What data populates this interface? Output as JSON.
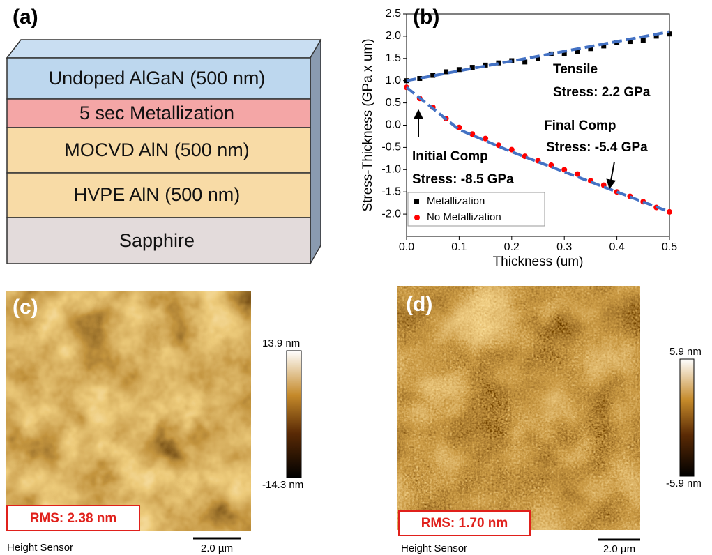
{
  "panel_a": {
    "label": "(a)",
    "layers": [
      "Undoped AlGaN (500 nm)",
      "5 sec Metallization",
      "MOCVD AlN (500 nm)",
      "HVPE AlN (500 nm)",
      "Sapphire"
    ]
  },
  "chart_data": {
    "type": "scatter",
    "panel_label": "(b)",
    "xlabel": "Thickness (um)",
    "ylabel": "Stress-Thickness (GPa x um)",
    "xlim": [
      0,
      0.5
    ],
    "ylim": [
      -2.5,
      2.5
    ],
    "xticks": [
      {
        "value": 0,
        "label": "0.0"
      },
      {
        "value": 0.1,
        "label": "0.1"
      },
      {
        "value": 0.2,
        "label": "0.2"
      },
      {
        "value": 0.3,
        "label": "0.3"
      },
      {
        "value": 0.4,
        "label": "0.4"
      },
      {
        "value": 0.5,
        "label": "0.5"
      }
    ],
    "yticks": [
      {
        "value": -2,
        "label": "-2.0"
      },
      {
        "value": -1.5,
        "label": "-1.5"
      },
      {
        "value": -1,
        "label": "-1.0"
      },
      {
        "value": -0.5,
        "label": "-0.5"
      },
      {
        "value": 0,
        "label": "0.0"
      },
      {
        "value": 0.5,
        "label": "0.5"
      },
      {
        "value": 1,
        "label": "1.0"
      },
      {
        "value": 1.5,
        "label": "1.5"
      },
      {
        "value": 2,
        "label": "2.0"
      },
      {
        "value": 2.5,
        "label": "2.5"
      }
    ],
    "series": [
      {
        "name": "Metallization",
        "color": "#000000",
        "marker": "square",
        "x": [
          0,
          0.025,
          0.05,
          0.075,
          0.1,
          0.125,
          0.15,
          0.175,
          0.2,
          0.225,
          0.25,
          0.275,
          0.3,
          0.325,
          0.35,
          0.375,
          0.4,
          0.425,
          0.45,
          0.475,
          0.5
        ],
        "values": [
          1.0,
          1.05,
          1.12,
          1.2,
          1.25,
          1.3,
          1.35,
          1.4,
          1.45,
          1.42,
          1.5,
          1.6,
          1.6,
          1.65,
          1.72,
          1.78,
          1.85,
          1.88,
          1.9,
          2.0,
          2.05
        ]
      },
      {
        "name": "No Metallization",
        "color": "#ff0000",
        "marker": "circle",
        "x": [
          0,
          0.025,
          0.05,
          0.075,
          0.1,
          0.125,
          0.15,
          0.175,
          0.2,
          0.225,
          0.25,
          0.275,
          0.3,
          0.325,
          0.35,
          0.375,
          0.4,
          0.425,
          0.45,
          0.475,
          0.5
        ],
        "values": [
          0.85,
          0.6,
          0.4,
          0.15,
          -0.05,
          -0.2,
          -0.3,
          -0.45,
          -0.55,
          -0.7,
          -0.8,
          -0.9,
          -1.0,
          -1.1,
          -1.25,
          -1.35,
          -1.5,
          -1.6,
          -1.72,
          -1.85,
          -1.95
        ]
      },
      {
        "color": "#4472c4",
        "marker": "dashed-line",
        "x": [
          0,
          0.5
        ],
        "values": [
          1.0,
          2.1
        ]
      },
      {
        "color": "#4472c4",
        "marker": "dashed-line",
        "x": [
          0,
          0.1,
          0.2,
          0.3,
          0.4,
          0.5
        ],
        "values": [
          0.85,
          -0.1,
          -0.6,
          -1.05,
          -1.5,
          -1.95
        ]
      }
    ],
    "annotations": [
      "Tensile",
      "Stress: 2.2 GPa",
      "Final Comp",
      "Stress: -5.4 GPa",
      "Initial Comp",
      "Stress: -8.5 GPa"
    ]
  },
  "panel_c": {
    "label": "(c)",
    "colorbar_max": "13.9 nm",
    "colorbar_min": "-14.3 nm",
    "rms": "RMS: 2.38 nm",
    "channel": "Height Sensor",
    "scale_bar": "2.0 µm"
  },
  "panel_d": {
    "label": "(d)",
    "colorbar_max": "5.9 nm",
    "colorbar_min": "-5.9 nm",
    "rms": "RMS: 1.70 nm",
    "channel": "Height Sensor",
    "scale_bar": "2.0 µm"
  }
}
